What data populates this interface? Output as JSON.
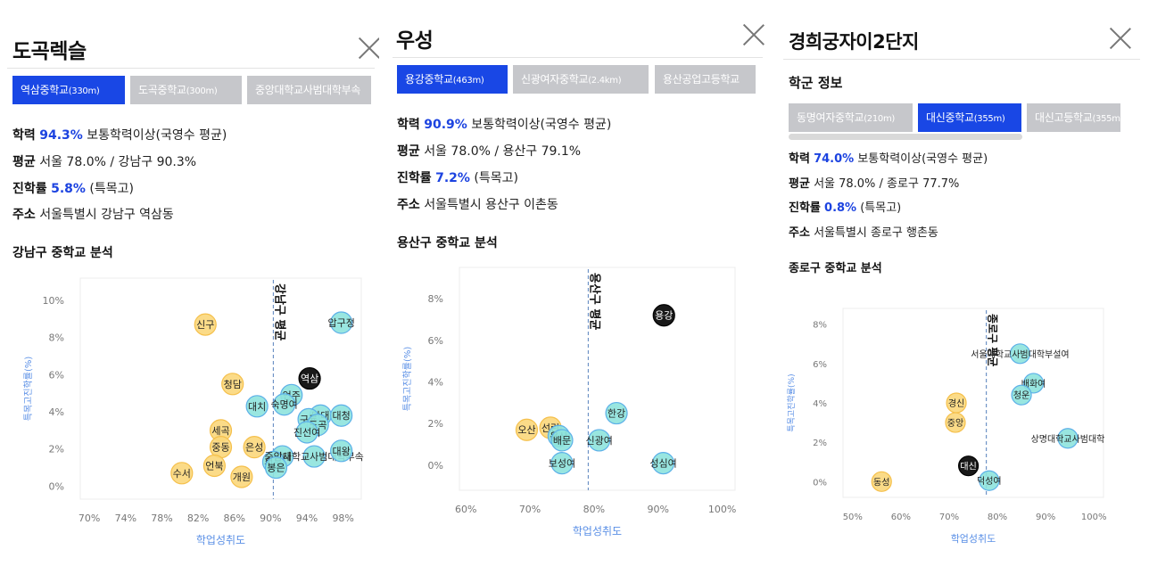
{
  "panels": [
    {
      "title": "도곡렉슬",
      "tabs": [
        {
          "name": "역삼중학교",
          "dist": "(330m)",
          "active": true
        },
        {
          "name": "도곡중학교",
          "dist": "(300m)",
          "active": false
        },
        {
          "name": "중앙대학교사범대학부속",
          "dist": "",
          "active": false
        }
      ],
      "achievement": {
        "label": "학력",
        "value": "94.3%",
        "desc": "보통학력이상(국영수 평균)"
      },
      "average": {
        "label": "평균",
        "text": "서울 78.0% / 강남구 90.3%"
      },
      "advancement": {
        "label": "진학률",
        "value": "5.8%",
        "desc": "(특목고)"
      },
      "address": {
        "label": "주소",
        "text": "서울특별시 강남구 역삼동"
      },
      "section_title": "강남구 중학교 분석",
      "chart_data": {
        "type": "scatter",
        "xlabel": "학업성취도",
        "ylabel": "특목고진학률(%)",
        "xlim": [
          69,
          100
        ],
        "ylim": [
          -0.7,
          11.2
        ],
        "xticks": [
          "70%",
          "74%",
          "78%",
          "82%",
          "86%",
          "90%",
          "94%",
          "98%"
        ],
        "yticks": [
          "0%",
          "2%",
          "4%",
          "6%",
          "8%",
          "10%"
        ],
        "avg_label": "강남구 평균",
        "avg_x": 90.3,
        "points": [
          {
            "label": "신구",
            "x": 82.8,
            "y": 8.7,
            "group": "low"
          },
          {
            "label": "압구정",
            "x": 97.8,
            "y": 8.8,
            "group": "high"
          },
          {
            "label": "청담",
            "x": 85.8,
            "y": 5.5,
            "group": "low"
          },
          {
            "label": "역삼",
            "x": 94.3,
            "y": 5.8,
            "group": "current"
          },
          {
            "label": "언주",
            "x": 92.3,
            "y": 4.9,
            "group": "high"
          },
          {
            "label": "대치",
            "x": 88.5,
            "y": 4.3,
            "group": "high"
          },
          {
            "label": "숙명여",
            "x": 91.5,
            "y": 4.4,
            "group": "high"
          },
          {
            "label": "단대",
            "x": 95.5,
            "y": 3.8,
            "group": "high"
          },
          {
            "label": "대청",
            "x": 97.8,
            "y": 3.8,
            "group": "high"
          },
          {
            "label": "구룡",
            "x": 94.2,
            "y": 3.6,
            "group": "high"
          },
          {
            "label": "도곡",
            "x": 95.2,
            "y": 3.3,
            "group": "high"
          },
          {
            "label": "진선여",
            "x": 94.0,
            "y": 2.9,
            "group": "high"
          },
          {
            "label": "세곡",
            "x": 84.5,
            "y": 3.0,
            "group": "low"
          },
          {
            "label": "중동",
            "x": 84.5,
            "y": 2.1,
            "group": "low"
          },
          {
            "label": "은성",
            "x": 88.2,
            "y": 2.1,
            "group": "low"
          },
          {
            "label": "신사",
            "x": 91.3,
            "y": 1.6,
            "group": "high"
          },
          {
            "label": "휘문",
            "x": 90.3,
            "y": 1.3,
            "group": "high"
          },
          {
            "label": "중앙대학교사범대학부속",
            "x": 94.8,
            "y": 1.6,
            "group": "high"
          },
          {
            "label": "대왕",
            "x": 97.8,
            "y": 1.9,
            "group": "high"
          },
          {
            "label": "언북",
            "x": 83.8,
            "y": 1.1,
            "group": "low"
          },
          {
            "label": "수서",
            "x": 80.2,
            "y": 0.7,
            "group": "low"
          },
          {
            "label": "개원",
            "x": 86.8,
            "y": 0.5,
            "group": "low"
          },
          {
            "label": "봉은",
            "x": 90.6,
            "y": 1.0,
            "group": "high"
          }
        ]
      }
    },
    {
      "title": "우성",
      "tabs": [
        {
          "name": "용강중학교",
          "dist": "(463m)",
          "active": true
        },
        {
          "name": "신광여자중학교",
          "dist": "(2.4km)",
          "active": false
        },
        {
          "name": "용산공업고등학교",
          "dist": "",
          "active": false
        }
      ],
      "achievement": {
        "label": "학력",
        "value": "90.9%",
        "desc": "보통학력이상(국영수 평균)"
      },
      "average": {
        "label": "평균",
        "text": "서울 78.0% / 용산구 79.1%"
      },
      "advancement": {
        "label": "진학률",
        "value": "7.2%",
        "desc": "(특목고)"
      },
      "address": {
        "label": "주소",
        "text": "서울특별시 용산구 이촌동"
      },
      "section_title": "용산구 중학교 분석",
      "chart_data": {
        "type": "scatter",
        "xlabel": "학업성취도",
        "ylabel": "특목고진학률(%)",
        "xlim": [
          59,
          102
        ],
        "ylim": [
          -1.2,
          9.5
        ],
        "xticks": [
          "60%",
          "70%",
          "80%",
          "90%",
          "100%"
        ],
        "yticks": [
          "0%",
          "2%",
          "4%",
          "6%",
          "8%"
        ],
        "avg_label": "용산구 평균",
        "avg_x": 79.1,
        "points": [
          {
            "label": "용강",
            "x": 90.9,
            "y": 7.2,
            "group": "current"
          },
          {
            "label": "한강",
            "x": 83.5,
            "y": 2.5,
            "group": "high"
          },
          {
            "label": "오산",
            "x": 69.5,
            "y": 1.7,
            "group": "low"
          },
          {
            "label": "선린",
            "x": 73.2,
            "y": 1.8,
            "group": "low"
          },
          {
            "label": "용산",
            "x": 74.5,
            "y": 1.4,
            "group": "high"
          },
          {
            "label": "배문",
            "x": 75.0,
            "y": 1.2,
            "group": "high"
          },
          {
            "label": "신광여",
            "x": 80.8,
            "y": 1.2,
            "group": "high"
          },
          {
            "label": "보성여",
            "x": 75.0,
            "y": 0.1,
            "group": "high"
          },
          {
            "label": "성심여",
            "x": 90.8,
            "y": 0.1,
            "group": "high"
          }
        ]
      }
    },
    {
      "title": "경희궁자이2단지",
      "info_heading": "학군 정보",
      "tabs": [
        {
          "name": "동명여자중학교",
          "dist": "(210m)",
          "active": false
        },
        {
          "name": "대신중학교",
          "dist": "(355m)",
          "active": true
        },
        {
          "name": "대신고등학교",
          "dist": "(355m)",
          "active": false
        }
      ],
      "achievement": {
        "label": "학력",
        "value": "74.0%",
        "desc": "보통학력이상(국영수 평균)"
      },
      "average": {
        "label": "평균",
        "text": "서울 78.0% / 종로구 77.7%"
      },
      "advancement": {
        "label": "진학률",
        "value": "0.8%",
        "desc": "(특목고)"
      },
      "address": {
        "label": "주소",
        "text": "서울특별시 종로구 행촌동"
      },
      "section_title": "종로구 중학교 분석",
      "chart_data": {
        "type": "scatter",
        "xlabel": "학업성취도",
        "ylabel": "특목고진학률(%)",
        "xlim": [
          48,
          102
        ],
        "ylim": [
          -0.8,
          8.8
        ],
        "xticks": [
          "50%",
          "60%",
          "70%",
          "80%",
          "90%",
          "100%"
        ],
        "yticks": [
          "0%",
          "2%",
          "4%",
          "6%",
          "8%"
        ],
        "avg_label": "종로구 평균",
        "avg_x": 77.7,
        "points": [
          {
            "label": "서울대학교사범대학부설여",
            "x": 84.7,
            "y": 6.5,
            "group": "high"
          },
          {
            "label": "배화여",
            "x": 87.5,
            "y": 5.0,
            "group": "high"
          },
          {
            "label": "청운",
            "x": 85.0,
            "y": 4.4,
            "group": "high"
          },
          {
            "label": "경신",
            "x": 71.5,
            "y": 4.0,
            "group": "low"
          },
          {
            "label": "중앙",
            "x": 71.3,
            "y": 3.0,
            "group": "low"
          },
          {
            "label": "상명대학교사범대학",
            "x": 94.6,
            "y": 2.2,
            "group": "high"
          },
          {
            "label": "대신",
            "x": 74.0,
            "y": 0.8,
            "group": "current"
          },
          {
            "label": "덕성여",
            "x": 78.3,
            "y": 0.05,
            "group": "high"
          },
          {
            "label": "동성",
            "x": 56.0,
            "y": 0.0,
            "group": "low"
          }
        ]
      }
    }
  ],
  "colors": {
    "accent": "#1947e5",
    "high_fill": "#8ee3dd",
    "high_stroke": "#5cb0e8",
    "low_fill": "#fbd77b",
    "low_stroke": "#f5c04c",
    "current": "#000000",
    "axis_label": "#5a8fe6"
  }
}
